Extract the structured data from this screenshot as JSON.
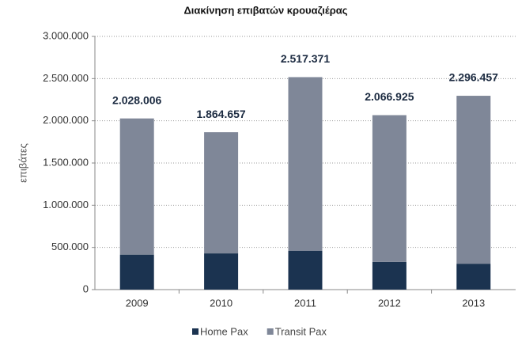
{
  "chart_data": {
    "type": "stacked_bar",
    "title": "Διακίνηση επιβατών κρουαζιέρας",
    "y_label": "επιβάτες",
    "categories": [
      "2009",
      "2010",
      "2011",
      "2012",
      "2013"
    ],
    "series": [
      {
        "name": "Home Pax",
        "color": "#1b3350",
        "values": [
          415000,
          430000,
          460000,
          330000,
          305000
        ]
      },
      {
        "name": "Transit Pax",
        "color": "#7f8798",
        "values": [
          1613006,
          1434657,
          2057371,
          1736925,
          1991457
        ]
      }
    ],
    "totals": {
      "values": [
        2028006,
        1864657,
        2517371,
        2066925,
        2296457
      ],
      "value_labels": [
        "2.028.006",
        "1.864.657",
        "2.517.371",
        "2.066.925",
        "2.296.457"
      ]
    },
    "ylim": [
      0,
      3000000
    ],
    "yticks": [
      0,
      {
        "value": 500000,
        "label": "500.000"
      },
      {
        "value": 1000000,
        "label": "1.000.000"
      },
      {
        "value": 1500000,
        "label": "1.500.000"
      },
      {
        "value": 2000000,
        "label": "2.000.000"
      },
      {
        "value": 2500000,
        "label": "2.500.000"
      },
      {
        "value": 3000000,
        "label": "3.000.000"
      }
    ],
    "grid": true,
    "legend": "bottom"
  }
}
